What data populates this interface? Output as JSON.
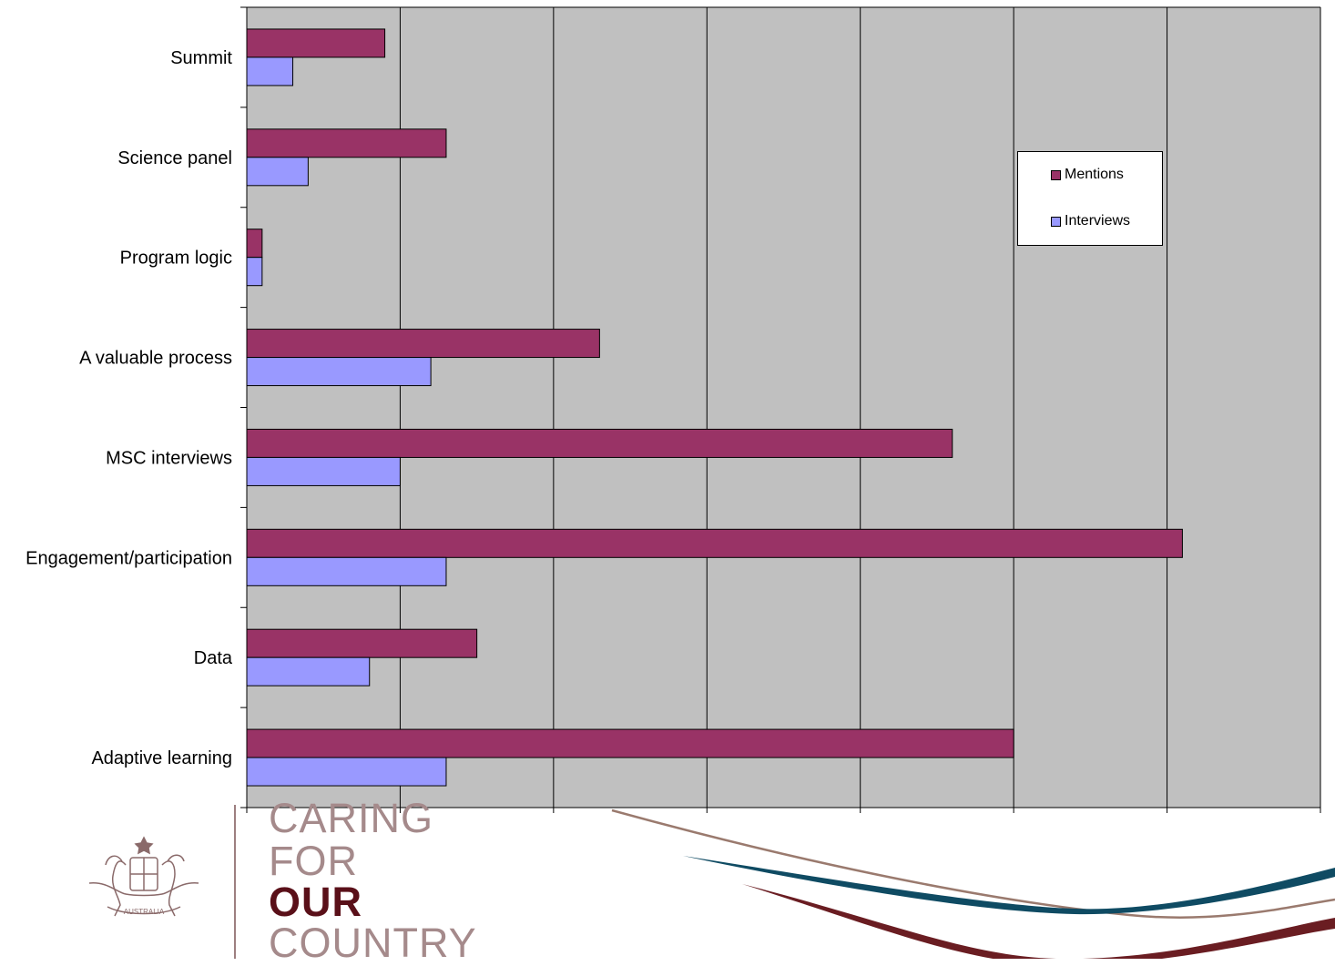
{
  "chart_data": {
    "type": "bar",
    "orientation": "horizontal",
    "categories": [
      "Summit",
      "Science panel",
      "Program logic",
      "A valuable process",
      "MSC interviews",
      "Engagement/participation",
      "Data",
      "Adaptive learning"
    ],
    "series": [
      {
        "name": "Mentions",
        "values": [
          9,
          13,
          1,
          23,
          46,
          61,
          15,
          50
        ],
        "color": "#993366"
      },
      {
        "name": "Interviews",
        "values": [
          3,
          4,
          1,
          12,
          10,
          13,
          8,
          13
        ],
        "color": "#9999ff"
      }
    ],
    "xlim": [
      0,
      70
    ],
    "xticks": [
      0,
      10,
      20,
      30,
      40,
      50,
      60,
      70
    ],
    "title": "",
    "xlabel": "",
    "ylabel": "",
    "grid": "vertical",
    "plot_background": "#c0c0c0",
    "legend_position": "right"
  },
  "legend": {
    "mentions": "Mentions",
    "interviews": "Interviews"
  },
  "branding": {
    "line1": "CARING",
    "line2": "FOR",
    "line3": "OUR",
    "line4": "COUNTRY",
    "crest_motto": "AUSTRALIA"
  }
}
